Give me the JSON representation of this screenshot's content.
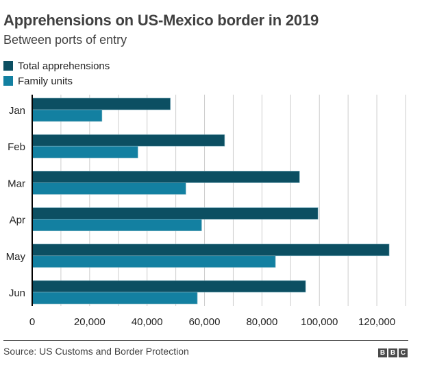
{
  "header": {
    "title": "Apprehensions on US-Mexico border in 2019",
    "subtitle": "Between ports of entry"
  },
  "legend": [
    {
      "label": "Total apprehensions",
      "color": "#0c4f62"
    },
    {
      "label": "Family units",
      "color": "#1380a1"
    }
  ],
  "footer": {
    "source": "Source: US Customs and Border Protection",
    "logo_letters": [
      "B",
      "B",
      "C"
    ]
  },
  "chart_data": {
    "type": "bar",
    "orientation": "horizontal",
    "title": "Apprehensions on US-Mexico border in 2019",
    "subtitle": "Between ports of entry",
    "categories": [
      "Jan",
      "Feb",
      "Mar",
      "Apr",
      "May",
      "Jun"
    ],
    "series": [
      {
        "name": "Total apprehensions",
        "color": "#0c4f62",
        "values": [
          48100,
          67000,
          93100,
          99500,
          124300,
          95200
        ]
      },
      {
        "name": "Family units",
        "color": "#1380a1",
        "values": [
          24300,
          36800,
          53500,
          59000,
          84700,
          57500
        ]
      }
    ],
    "xlabel": "",
    "ylabel": "",
    "xlim": [
      0,
      130000
    ],
    "xticks": [
      0,
      20000,
      40000,
      60000,
      80000,
      100000,
      120000
    ],
    "xtick_labels": [
      "0",
      "20,000",
      "40,000",
      "60,000",
      "80,000",
      "100,000",
      "120,000"
    ],
    "gridlines_every": 10000,
    "grid": true,
    "legend_position": "top-left"
  }
}
